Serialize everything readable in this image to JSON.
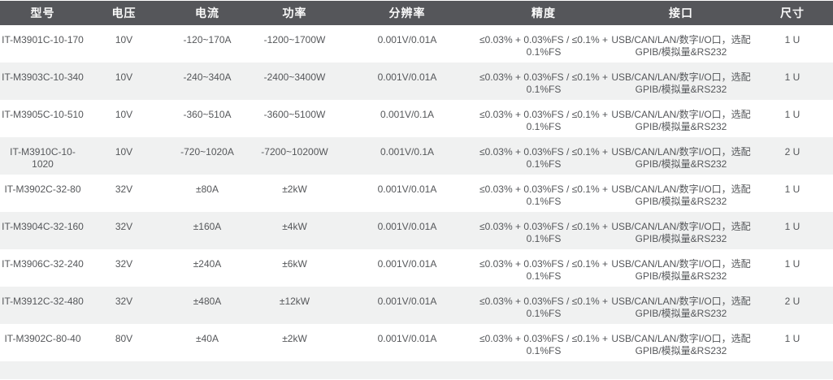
{
  "colors": {
    "header_bg": "#55565a",
    "header_text": "#fafafa",
    "body_text": "#55575a",
    "row_bg": "#ffffff",
    "row_alt_bg": "#f0f1f1"
  },
  "table": {
    "columns": [
      {
        "key": "model",
        "label": "型号"
      },
      {
        "key": "voltage",
        "label": "电压"
      },
      {
        "key": "current",
        "label": "电流"
      },
      {
        "key": "power",
        "label": "功率"
      },
      {
        "key": "resolution",
        "label": "分辨率"
      },
      {
        "key": "accuracy",
        "label": "精度"
      },
      {
        "key": "interface",
        "label": "接口"
      },
      {
        "key": "size",
        "label": "尺寸"
      }
    ],
    "rows": [
      {
        "model": "IT-M3901C-10-170",
        "voltage": "10V",
        "current": "-120~170A",
        "power": "-1200~1700W",
        "resolution": "0.001V/0.01A",
        "accuracy": "≤0.03% + 0.03%FS / ≤0.1% + 0.1%FS",
        "interface": "USB/CAN/LAN/数字I/O口，选配GPIB/模拟量&RS232",
        "size": "1 U"
      },
      {
        "model": "IT-M3903C-10-340",
        "voltage": "10V",
        "current": "-240~340A",
        "power": "-2400~3400W",
        "resolution": "0.001V/0.01A",
        "accuracy": "≤0.03% + 0.03%FS / ≤0.1% + 0.1%FS",
        "interface": "USB/CAN/LAN/数字I/O口，选配GPIB/模拟量&RS232",
        "size": "1 U"
      },
      {
        "model": "IT-M3905C-10-510",
        "voltage": "10V",
        "current": "-360~510A",
        "power": "-3600~5100W",
        "resolution": "0.001V/0.1A",
        "accuracy": "≤0.03% + 0.03%FS / ≤0.1% + 0.1%FS",
        "interface": "USB/CAN/LAN/数字I/O口，选配GPIB/模拟量&RS232",
        "size": "1 U"
      },
      {
        "model": "IT-M3910C-10-1020",
        "voltage": "10V",
        "current": "-720~1020A",
        "power": "-7200~10200W",
        "resolution": "0.001V/0.1A",
        "accuracy": "≤0.03% + 0.03%FS / ≤0.1% + 0.1%FS",
        "interface": "USB/CAN/LAN/数字I/O口，选配GPIB/模拟量&RS232",
        "size": "2 U"
      },
      {
        "model": "IT-M3902C-32-80",
        "voltage": "32V",
        "current": "±80A",
        "power": "±2kW",
        "resolution": "0.001V/0.01A",
        "accuracy": "≤0.03% + 0.03%FS / ≤0.1% + 0.1%FS",
        "interface": "USB/CAN/LAN/数字I/O口，选配GPIB/模拟量&RS232",
        "size": "1 U"
      },
      {
        "model": "IT-M3904C-32-160",
        "voltage": "32V",
        "current": "±160A",
        "power": "±4kW",
        "resolution": "0.001V/0.01A",
        "accuracy": "≤0.03% + 0.03%FS / ≤0.1% + 0.1%FS",
        "interface": "USB/CAN/LAN/数字I/O口，选配GPIB/模拟量&RS232",
        "size": "1 U"
      },
      {
        "model": "IT-M3906C-32-240",
        "voltage": "32V",
        "current": "±240A",
        "power": "±6kW",
        "resolution": "0.001V/0.01A",
        "accuracy": "≤0.03% + 0.03%FS / ≤0.1% + 0.1%FS",
        "interface": "USB/CAN/LAN/数字I/O口，选配GPIB/模拟量&RS232",
        "size": "1 U"
      },
      {
        "model": "IT-M3912C-32-480",
        "voltage": "32V",
        "current": "±480A",
        "power": "±12kW",
        "resolution": "0.001V/0.01A",
        "accuracy": "≤0.03% + 0.03%FS / ≤0.1% + 0.1%FS",
        "interface": "USB/CAN/LAN/数字I/O口，选配GPIB/模拟量&RS232",
        "size": "2 U"
      },
      {
        "model": "IT-M3902C-80-40",
        "voltage": "80V",
        "current": "±40A",
        "power": "±2kW",
        "resolution": "0.001V/0.01A",
        "accuracy": "≤0.03% + 0.03%FS / ≤0.1% + 0.1%FS",
        "interface": "USB/CAN/LAN/数字I/O口，选配GPIB/模拟量&RS232",
        "size": "1 U"
      }
    ]
  }
}
